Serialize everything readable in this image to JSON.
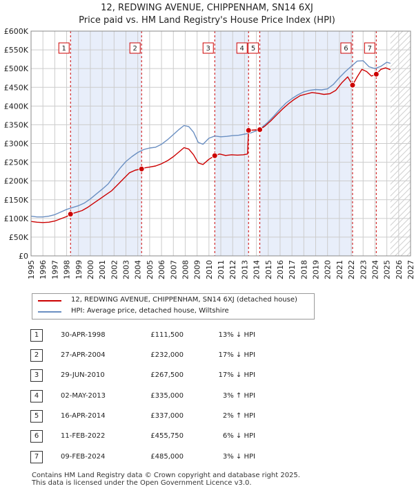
{
  "title_line1": "12, REDWING AVENUE, CHIPPENHAM, SN14 6XJ",
  "title_line2": "Price paid vs. HM Land Registry's House Price Index (HPI)",
  "colors": {
    "price_paid": "#cc0000",
    "hpi": "#6a8fc2",
    "shade": "#e8eefa",
    "grid": "#cccccc"
  },
  "chart_data": {
    "type": "line",
    "xlim": [
      1995,
      2027
    ],
    "ylim": [
      0,
      600000
    ],
    "x_ticks": [
      "1995",
      "1996",
      "1997",
      "1998",
      "1999",
      "2000",
      "2001",
      "2002",
      "2003",
      "2004",
      "2005",
      "2006",
      "2007",
      "2008",
      "2009",
      "2010",
      "2011",
      "2012",
      "2013",
      "2014",
      "2015",
      "2016",
      "2017",
      "2018",
      "2019",
      "2020",
      "2021",
      "2022",
      "2023",
      "2024",
      "2025",
      "2026",
      "2027"
    ],
    "y_ticks": [
      {
        "value": 0,
        "label": "£0"
      },
      {
        "value": 50000,
        "label": "£50K"
      },
      {
        "value": 100000,
        "label": "£100K"
      },
      {
        "value": 150000,
        "label": "£150K"
      },
      {
        "value": 200000,
        "label": "£200K"
      },
      {
        "value": 250000,
        "label": "£250K"
      },
      {
        "value": 300000,
        "label": "£300K"
      },
      {
        "value": 350000,
        "label": "£350K"
      },
      {
        "value": 400000,
        "label": "£400K"
      },
      {
        "value": 450000,
        "label": "£450K"
      },
      {
        "value": 500000,
        "label": "£500K"
      },
      {
        "value": 550000,
        "label": "£550K"
      },
      {
        "value": 600000,
        "label": "£600K"
      }
    ],
    "future_start": 2025.3,
    "series": [
      {
        "name": "12, REDWING AVENUE, CHIPPENHAM, SN14 6XJ (detached house)",
        "color": "#cc0000",
        "points": [
          [
            1995.0,
            92000
          ],
          [
            1995.5,
            90000
          ],
          [
            1996.0,
            89000
          ],
          [
            1996.5,
            90000
          ],
          [
            1997.0,
            93000
          ],
          [
            1997.5,
            99000
          ],
          [
            1998.0,
            105000
          ],
          [
            1998.33,
            111500
          ],
          [
            1998.8,
            116000
          ],
          [
            1999.3,
            121000
          ],
          [
            1999.8,
            130000
          ],
          [
            2000.3,
            141000
          ],
          [
            2000.8,
            152000
          ],
          [
            2001.3,
            163000
          ],
          [
            2001.8,
            174000
          ],
          [
            2002.3,
            190000
          ],
          [
            2002.8,
            206000
          ],
          [
            2003.3,
            222000
          ],
          [
            2003.8,
            229000
          ],
          [
            2004.32,
            232000
          ],
          [
            2004.6,
            235000
          ],
          [
            2005.0,
            237000
          ],
          [
            2005.5,
            240000
          ],
          [
            2006.0,
            246000
          ],
          [
            2006.5,
            254000
          ],
          [
            2007.0,
            265000
          ],
          [
            2007.5,
            278000
          ],
          [
            2007.9,
            289000
          ],
          [
            2008.3,
            285000
          ],
          [
            2008.7,
            270000
          ],
          [
            2009.1,
            248000
          ],
          [
            2009.5,
            244000
          ],
          [
            2010.0,
            258000
          ],
          [
            2010.49,
            267500
          ],
          [
            2010.9,
            272000
          ],
          [
            2011.4,
            268000
          ],
          [
            2011.9,
            270000
          ],
          [
            2012.4,
            269000
          ],
          [
            2012.9,
            270000
          ],
          [
            2013.25,
            272000
          ],
          [
            2013.34,
            335000
          ],
          [
            2013.8,
            336000
          ],
          [
            2014.29,
            337000
          ],
          [
            2014.7,
            346000
          ],
          [
            2015.2,
            360000
          ],
          [
            2015.7,
            376000
          ],
          [
            2016.2,
            392000
          ],
          [
            2016.7,
            406000
          ],
          [
            2017.2,
            418000
          ],
          [
            2017.7,
            428000
          ],
          [
            2018.2,
            432000
          ],
          [
            2018.7,
            436000
          ],
          [
            2019.2,
            434000
          ],
          [
            2019.7,
            431000
          ],
          [
            2020.2,
            433000
          ],
          [
            2020.7,
            442000
          ],
          [
            2021.2,
            462000
          ],
          [
            2021.7,
            478000
          ],
          [
            2022.11,
            455750
          ],
          [
            2022.5,
            478000
          ],
          [
            2022.9,
            498000
          ],
          [
            2023.3,
            492000
          ],
          [
            2023.7,
            480000
          ],
          [
            2024.11,
            485000
          ],
          [
            2024.5,
            498000
          ],
          [
            2024.9,
            502000
          ],
          [
            2025.3,
            497000
          ]
        ]
      },
      {
        "name": "HPI: Average price, detached house, Wiltshire",
        "color": "#6a8fc2",
        "points": [
          [
            1995.0,
            106000
          ],
          [
            1995.5,
            104000
          ],
          [
            1996.0,
            104000
          ],
          [
            1996.5,
            106000
          ],
          [
            1997.0,
            110000
          ],
          [
            1997.5,
            117000
          ],
          [
            1998.0,
            124000
          ],
          [
            1998.5,
            129000
          ],
          [
            1999.0,
            134000
          ],
          [
            1999.5,
            141000
          ],
          [
            2000.0,
            152000
          ],
          [
            2000.5,
            165000
          ],
          [
            2001.0,
            178000
          ],
          [
            2001.5,
            192000
          ],
          [
            2002.0,
            213000
          ],
          [
            2002.5,
            234000
          ],
          [
            2003.0,
            252000
          ],
          [
            2003.5,
            265000
          ],
          [
            2004.0,
            276000
          ],
          [
            2004.5,
            284000
          ],
          [
            2005.0,
            288000
          ],
          [
            2005.5,
            290000
          ],
          [
            2006.0,
            298000
          ],
          [
            2006.5,
            310000
          ],
          [
            2007.0,
            324000
          ],
          [
            2007.5,
            338000
          ],
          [
            2007.9,
            348000
          ],
          [
            2008.3,
            345000
          ],
          [
            2008.7,
            330000
          ],
          [
            2009.1,
            303000
          ],
          [
            2009.5,
            298000
          ],
          [
            2010.0,
            314000
          ],
          [
            2010.5,
            320000
          ],
          [
            2011.0,
            318000
          ],
          [
            2011.5,
            319000
          ],
          [
            2012.0,
            321000
          ],
          [
            2012.5,
            322000
          ],
          [
            2013.0,
            325000
          ],
          [
            2013.5,
            328000
          ],
          [
            2014.0,
            334000
          ],
          [
            2014.5,
            344000
          ],
          [
            2015.0,
            358000
          ],
          [
            2015.5,
            374000
          ],
          [
            2016.0,
            392000
          ],
          [
            2016.5,
            408000
          ],
          [
            2017.0,
            420000
          ],
          [
            2017.5,
            430000
          ],
          [
            2018.0,
            438000
          ],
          [
            2018.5,
            442000
          ],
          [
            2019.0,
            444000
          ],
          [
            2019.5,
            443000
          ],
          [
            2020.0,
            446000
          ],
          [
            2020.5,
            458000
          ],
          [
            2021.0,
            476000
          ],
          [
            2021.5,
            492000
          ],
          [
            2022.0,
            506000
          ],
          [
            2022.5,
            520000
          ],
          [
            2023.0,
            521000
          ],
          [
            2023.5,
            505000
          ],
          [
            2024.0,
            500000
          ],
          [
            2024.5,
            506000
          ],
          [
            2025.0,
            517000
          ],
          [
            2025.3,
            514000
          ]
        ]
      }
    ],
    "sales": [
      {
        "label": "1",
        "x": 1998.33,
        "price": 111500
      },
      {
        "label": "2",
        "x": 2004.32,
        "price": 232000
      },
      {
        "label": "3",
        "x": 2010.49,
        "price": 267500
      },
      {
        "label": "4",
        "x": 2013.34,
        "price": 335000
      },
      {
        "label": "5",
        "x": 2014.29,
        "price": 337000
      },
      {
        "label": "6",
        "x": 2022.11,
        "price": 455750
      },
      {
        "label": "7",
        "x": 2024.11,
        "price": 485000
      }
    ]
  },
  "legend": {
    "price_paid": "12, REDWING AVENUE, CHIPPENHAM, SN14 6XJ (detached house)",
    "hpi": "HPI: Average price, detached house, Wiltshire"
  },
  "sales_table": [
    {
      "num": "1",
      "date": "30-APR-1998",
      "price": "£111,500",
      "delta": "13% ↓ HPI"
    },
    {
      "num": "2",
      "date": "27-APR-2004",
      "price": "£232,000",
      "delta": "17% ↓ HPI"
    },
    {
      "num": "3",
      "date": "29-JUN-2010",
      "price": "£267,500",
      "delta": "17% ↓ HPI"
    },
    {
      "num": "4",
      "date": "02-MAY-2013",
      "price": "£335,000",
      "delta": "3% ↑ HPI"
    },
    {
      "num": "5",
      "date": "16-APR-2014",
      "price": "£337,000",
      "delta": "2% ↑ HPI"
    },
    {
      "num": "6",
      "date": "11-FEB-2022",
      "price": "£455,750",
      "delta": "6% ↓ HPI"
    },
    {
      "num": "7",
      "date": "09-FEB-2024",
      "price": "£485,000",
      "delta": "3% ↓ HPI"
    }
  ],
  "footer_line1": "Contains HM Land Registry data © Crown copyright and database right 2025.",
  "footer_line2": "This data is licensed under the Open Government Licence v3.0."
}
